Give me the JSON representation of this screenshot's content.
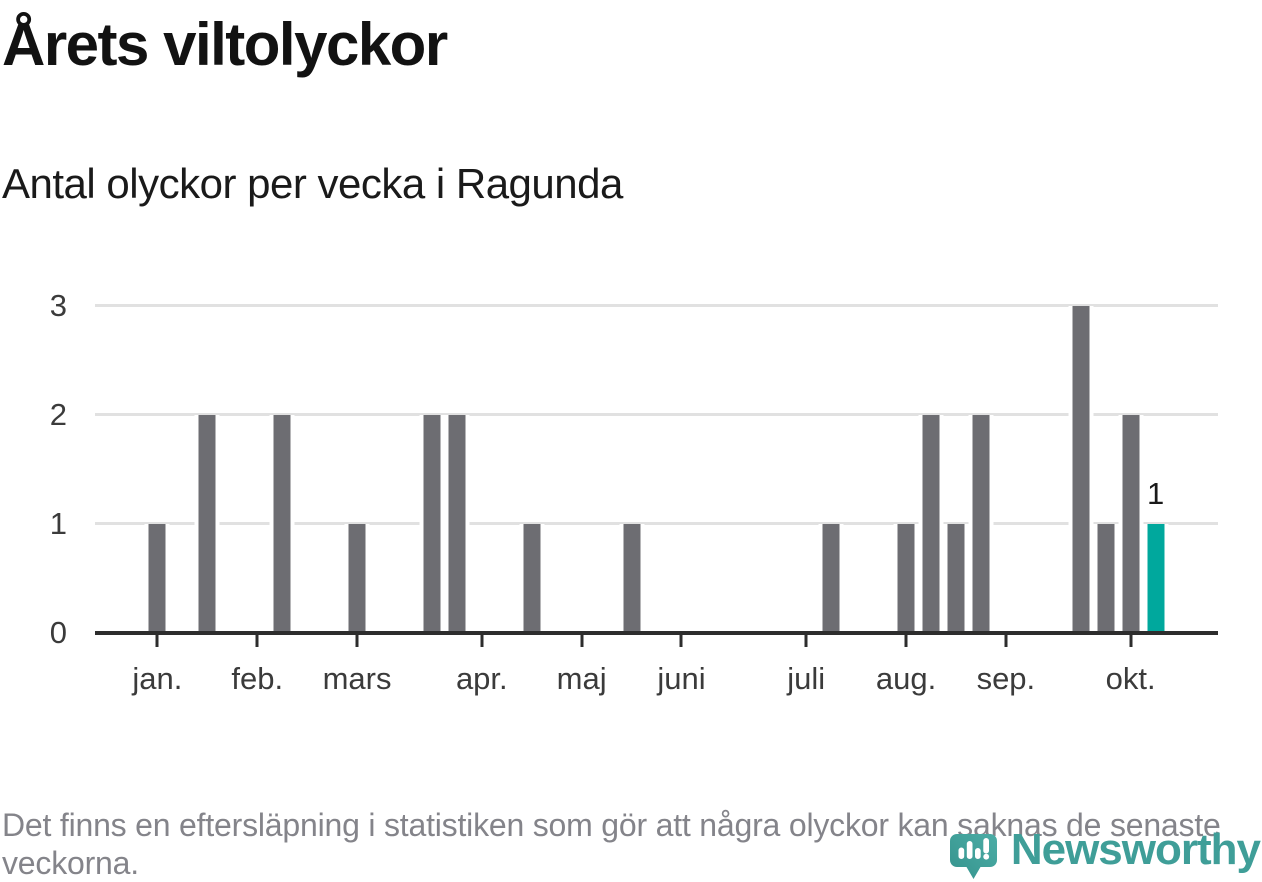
{
  "chart_data": {
    "type": "bar",
    "title": "Årets viltolyckor",
    "subtitle": "Antal olyckor per vecka i Ragunda",
    "xlabel": "",
    "ylabel": "",
    "ylim": [
      0,
      3
    ],
    "yticks": [
      0,
      1,
      2,
      3
    ],
    "grid": true,
    "legend": "none",
    "x_unit": "vecka",
    "first_week": 1,
    "values": [
      1,
      0,
      2,
      0,
      0,
      2,
      0,
      0,
      1,
      0,
      0,
      2,
      2,
      0,
      0,
      1,
      0,
      0,
      0,
      1,
      0,
      0,
      0,
      0,
      0,
      0,
      0,
      1,
      0,
      0,
      1,
      2,
      1,
      2,
      0,
      0,
      0,
      3,
      1,
      2,
      1
    ],
    "nonzero_weeks": [
      {
        "week": 1,
        "value": 1
      },
      {
        "week": 3,
        "value": 2
      },
      {
        "week": 6,
        "value": 2
      },
      {
        "week": 9,
        "value": 1
      },
      {
        "week": 12,
        "value": 2
      },
      {
        "week": 13,
        "value": 2
      },
      {
        "week": 16,
        "value": 1
      },
      {
        "week": 20,
        "value": 1
      },
      {
        "week": 28,
        "value": 1
      },
      {
        "week": 31,
        "value": 1
      },
      {
        "week": 32,
        "value": 2
      },
      {
        "week": 33,
        "value": 1
      },
      {
        "week": 34,
        "value": 2
      },
      {
        "week": 38,
        "value": 3
      },
      {
        "week": 39,
        "value": 1
      },
      {
        "week": 40,
        "value": 2
      },
      {
        "week": 41,
        "value": 1
      }
    ],
    "month_ticks": [
      {
        "label": "jan.",
        "week": 1
      },
      {
        "label": "feb.",
        "week": 5
      },
      {
        "label": "mars",
        "week": 9
      },
      {
        "label": "apr.",
        "week": 14
      },
      {
        "label": "maj",
        "week": 18
      },
      {
        "label": "juni",
        "week": 22
      },
      {
        "label": "juli",
        "week": 27
      },
      {
        "label": "aug.",
        "week": 31
      },
      {
        "label": "sep.",
        "week": 35
      },
      {
        "label": "okt.",
        "week": 40
      }
    ],
    "highlight_week": 41,
    "highlight_label": "1",
    "colors": {
      "bar": "#6d6d72",
      "highlight": "#00a89d",
      "axis": "#2d2d2d",
      "grid": "#e1e1e1",
      "tick_label": "#3b3b3b",
      "title": "#121212",
      "footnote": "#84848a",
      "brand": "#3f9e98"
    }
  },
  "footer": {
    "note": "Det finns en eftersläpning i statistiken som gör att några olyckor kan saknas de senaste veckorna.",
    "brand": "Newsworthy"
  }
}
